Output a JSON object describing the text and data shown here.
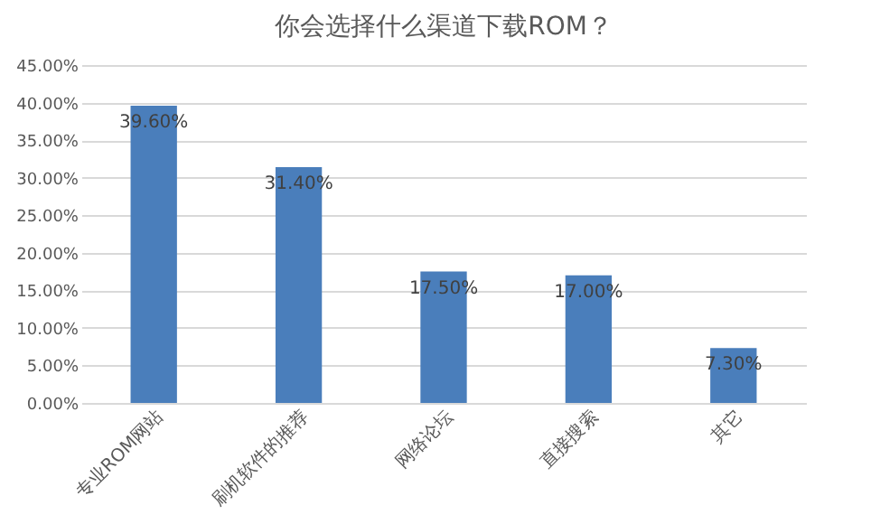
{
  "chart_data": {
    "type": "bar",
    "title": "你会选择什么渠道下载ROM？",
    "categories": [
      "专业ROM网站",
      "刷机软件的推荐",
      "网络论坛",
      "直接搜索",
      "其它"
    ],
    "values": [
      39.6,
      31.4,
      17.5,
      17.0,
      7.3
    ],
    "value_labels": [
      "39.60%",
      "31.40%",
      "17.50%",
      "17.00%",
      "7.30%"
    ],
    "color": "#4a7ebb",
    "ylim": [
      0,
      45
    ],
    "yticks": [
      {
        "value": 0,
        "label": "0.00%"
      },
      {
        "value": 5,
        "label": "5.00%"
      },
      {
        "value": 10,
        "label": "10.00%"
      },
      {
        "value": 15,
        "label": "15.00%"
      },
      {
        "value": 20,
        "label": "20.00%"
      },
      {
        "value": 25,
        "label": "25.00%"
      },
      {
        "value": 30,
        "label": "30.00%"
      },
      {
        "value": 35,
        "label": "35.00%"
      },
      {
        "value": 40,
        "label": "40.00%"
      },
      {
        "value": 45,
        "label": "45.00%"
      }
    ],
    "grid": "y"
  }
}
